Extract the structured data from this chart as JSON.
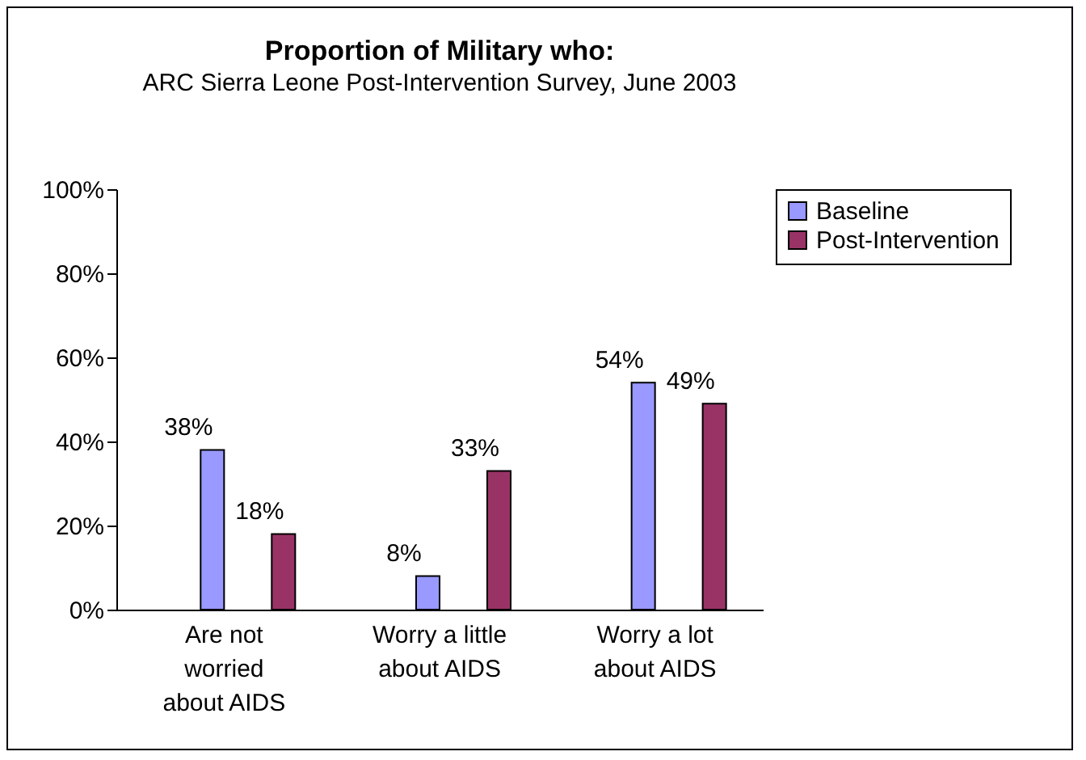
{
  "chart_data": {
    "type": "bar",
    "title": "Proportion of Military who:",
    "subtitle": "ARC Sierra Leone Post-Intervention Survey, June 2003",
    "categories": [
      "Are not\nworried\nabout AIDS",
      "Worry a little\nabout AIDS",
      "Worry a lot\nabout AIDS"
    ],
    "series": [
      {
        "name": "Baseline",
        "color": "#9999ff",
        "values": [
          38,
          8,
          54
        ],
        "value_labels": [
          "38%",
          "8%",
          "54%"
        ]
      },
      {
        "name": "Post-Intervention",
        "color": "#993366",
        "values": [
          18,
          33,
          49
        ],
        "value_labels": [
          "18%",
          "33%",
          "49%"
        ]
      }
    ],
    "ylim": [
      0,
      100
    ],
    "yticks": [
      {
        "value": 0,
        "label": "0%"
      },
      {
        "value": 20,
        "label": "20%"
      },
      {
        "value": 40,
        "label": "40%"
      },
      {
        "value": 60,
        "label": "60%"
      },
      {
        "value": 80,
        "label": "80%"
      },
      {
        "value": 100,
        "label": "100%"
      }
    ],
    "grid": false,
    "legend": "right"
  }
}
